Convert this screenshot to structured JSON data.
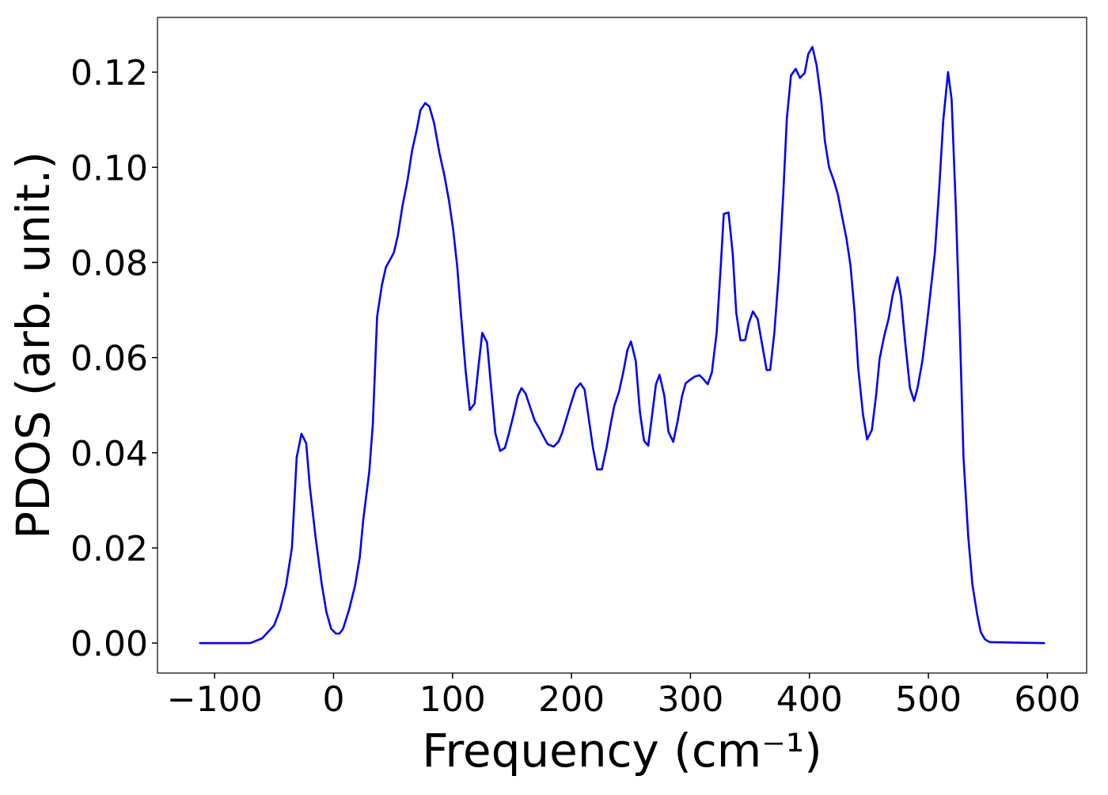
{
  "chart_data": {
    "type": "line",
    "xlabel": "Frequency (cm⁻¹)",
    "ylabel": "PDOS (arb. unit.)",
    "series": [
      {
        "name": "PDOS",
        "color": "#0000ff",
        "x": [
          -113,
          -70,
          -60,
          -50,
          -45,
          -40,
          -35,
          -31,
          -27,
          -23,
          -20,
          -15,
          -10,
          -6,
          -2,
          2,
          5,
          8,
          13,
          18,
          22,
          25,
          30,
          33,
          36.6,
          40.6,
          44,
          50.6,
          54,
          58,
          62,
          66,
          70,
          73,
          77,
          80.5,
          84.5,
          89,
          93,
          97,
          100.5,
          104,
          107,
          111,
          114.5,
          118.5,
          122,
          125,
          129,
          132.5,
          136,
          140,
          144,
          147,
          151,
          155,
          158,
          161.5,
          165.5,
          169,
          173,
          176,
          180,
          185,
          189,
          192,
          196,
          199.5,
          203.5,
          207.5,
          211,
          214,
          218,
          221.5,
          225.5,
          229.5,
          233,
          236,
          240,
          243.5,
          247,
          250,
          254,
          257.5,
          261,
          264.5,
          267.5,
          271,
          274,
          278,
          281.5,
          285.5,
          289,
          293,
          296,
          300,
          303.5,
          307.5,
          310.5,
          314.5,
          318,
          322,
          325.5,
          328,
          332,
          335.5,
          338.5,
          342,
          346,
          349,
          352.5,
          356.5,
          360,
          364,
          367,
          370.5,
          374.5,
          378,
          381,
          384.5,
          388.5,
          392,
          396,
          399,
          402.5,
          406,
          410,
          413,
          416.5,
          420.5,
          424,
          427,
          431,
          434.5,
          438,
          441,
          445,
          448.5,
          452.5,
          456,
          459,
          463,
          466.5,
          470,
          474,
          477,
          480.5,
          484.5,
          488,
          491,
          495,
          498.5,
          501.5,
          505.5,
          509,
          512.5,
          516.5,
          519.5,
          523,
          526.5,
          529.5,
          533.5,
          537,
          541,
          544,
          547.5,
          551.5,
          598
        ],
        "values": [
          0,
          0,
          0.001,
          0.0037,
          0.007,
          0.012,
          0.02,
          0.039,
          0.044,
          0.042,
          0.033,
          0.022,
          0.0125,
          0.0065,
          0.003,
          0.002,
          0.002,
          0.003,
          0.007,
          0.012,
          0.018,
          0.026,
          0.036,
          0.046,
          0.0686,
          0.0752,
          0.079,
          0.082,
          0.0856,
          0.092,
          0.097,
          0.1035,
          0.108,
          0.112,
          0.1135,
          0.1128,
          0.1093,
          0.103,
          0.0985,
          0.093,
          0.087,
          0.079,
          0.0694,
          0.0573,
          0.049,
          0.0503,
          0.0586,
          0.0652,
          0.0632,
          0.0536,
          0.0441,
          0.0404,
          0.041,
          0.0437,
          0.0477,
          0.052,
          0.0536,
          0.0524,
          0.0494,
          0.0468,
          0.0451,
          0.0436,
          0.0418,
          0.0413,
          0.0423,
          0.0441,
          0.0474,
          0.0503,
          0.0534,
          0.0546,
          0.0533,
          0.0481,
          0.0411,
          0.0365,
          0.0365,
          0.0411,
          0.0461,
          0.0499,
          0.0529,
          0.0569,
          0.0616,
          0.0634,
          0.0593,
          0.0486,
          0.0425,
          0.0415,
          0.0474,
          0.0544,
          0.0564,
          0.052,
          0.0444,
          0.0423,
          0.0464,
          0.052,
          0.0546,
          0.0554,
          0.056,
          0.0563,
          0.0556,
          0.0544,
          0.0569,
          0.0652,
          0.0794,
          0.0902,
          0.0905,
          0.0819,
          0.0694,
          0.0636,
          0.0637,
          0.0672,
          0.0697,
          0.0681,
          0.0631,
          0.0574,
          0.0574,
          0.0652,
          0.0786,
          0.0944,
          0.1102,
          0.1193,
          0.1207,
          0.1188,
          0.1198,
          0.1238,
          0.1253,
          0.1215,
          0.1138,
          0.1055,
          0.1,
          0.0972,
          0.0942,
          0.0902,
          0.0852,
          0.0794,
          0.0694,
          0.0578,
          0.0481,
          0.0428,
          0.0448,
          0.052,
          0.0598,
          0.0647,
          0.0681,
          0.0732,
          0.0769,
          0.0727,
          0.0632,
          0.0536,
          0.0509,
          0.0538,
          0.0594,
          0.0666,
          0.0732,
          0.0822,
          0.0952,
          0.1099,
          0.12,
          0.1143,
          0.0919,
          0.0652,
          0.039,
          0.0223,
          0.0123,
          0.006,
          0.0023,
          0.0008,
          0.0002,
          0
        ]
      }
    ],
    "xlim": [
      -148,
      633
    ],
    "ylim": [
      -0.0063,
      0.1315
    ],
    "xticks": [
      {
        "value": -100,
        "label": "−100"
      },
      0,
      100,
      200,
      300,
      400,
      500,
      600
    ],
    "yticks": [
      {
        "value": 0,
        "label": "0.00"
      },
      {
        "value": 0.02,
        "label": "0.02"
      },
      {
        "value": 0.04,
        "label": "0.04"
      },
      {
        "value": 0.06,
        "label": "0.06"
      },
      {
        "value": 0.08,
        "label": "0.08"
      },
      {
        "value": 0.1,
        "label": "0.10"
      },
      {
        "value": 0.12,
        "label": "0.12"
      }
    ],
    "grid": false
  }
}
